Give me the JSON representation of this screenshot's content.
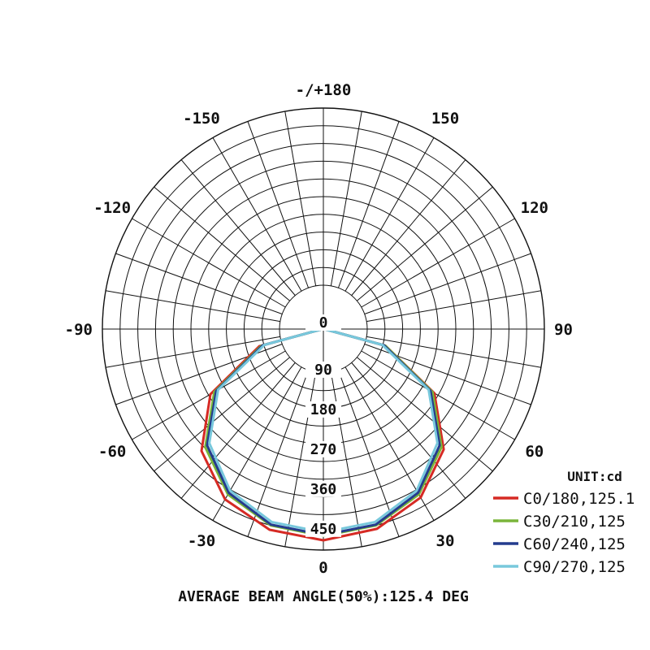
{
  "chart_data": {
    "type": "polar-line",
    "unit_label": "UNIT:cd",
    "footer": "AVERAGE BEAM ANGLE(50%):125.4 DEG",
    "angle_labels": [
      {
        "angle": 180,
        "text": "-/+180"
      },
      {
        "angle": 150,
        "text": "150"
      },
      {
        "angle": -150,
        "text": "-150"
      },
      {
        "angle": 120,
        "text": "120"
      },
      {
        "angle": -120,
        "text": "-120"
      },
      {
        "angle": 90,
        "text": "90"
      },
      {
        "angle": -90,
        "text": "-90"
      },
      {
        "angle": 60,
        "text": "60"
      },
      {
        "angle": -60,
        "text": "-60"
      },
      {
        "angle": 30,
        "text": "30"
      },
      {
        "angle": -30,
        "text": "-30"
      },
      {
        "angle": 0,
        "text": "0"
      }
    ],
    "radial_ticks": [
      "0",
      "90",
      "180",
      "270",
      "360",
      "450"
    ],
    "r_max": 500,
    "series": [
      {
        "name": "C0/180,125.1",
        "color": "#d62a24",
        "angles": [
          -180,
          -165,
          -150,
          -135,
          -120,
          -105,
          -90,
          -75,
          -60,
          -45,
          -30,
          -15,
          0,
          15,
          30,
          45,
          60,
          75,
          90,
          105,
          120,
          135,
          150,
          165,
          180
        ],
        "values": [
          0,
          18,
          22,
          15,
          8,
          4,
          2,
          150,
          295,
          390,
          445,
          470,
          478,
          468,
          440,
          385,
          290,
          145,
          2,
          4,
          8,
          15,
          22,
          18,
          0
        ]
      },
      {
        "name": "C30/210,125",
        "color": "#7ab53a",
        "angles": [
          -180,
          -165,
          -150,
          -135,
          -120,
          -105,
          -90,
          -75,
          -60,
          -45,
          -30,
          -15,
          0,
          15,
          30,
          45,
          60,
          75,
          90,
          105,
          120,
          135,
          150,
          165,
          180
        ],
        "values": [
          0,
          17,
          21,
          14,
          7,
          3,
          2,
          145,
          285,
          378,
          432,
          460,
          468,
          460,
          432,
          378,
          285,
          145,
          2,
          3,
          7,
          14,
          21,
          17,
          0
        ]
      },
      {
        "name": "C60/240,125",
        "color": "#243c8e",
        "angles": [
          -180,
          -165,
          -150,
          -135,
          -120,
          -105,
          -90,
          -75,
          -60,
          -45,
          -30,
          -15,
          0,
          15,
          30,
          45,
          60,
          75,
          90,
          105,
          120,
          135,
          150,
          165,
          180
        ],
        "values": [
          0,
          17,
          21,
          14,
          7,
          3,
          2,
          142,
          280,
          372,
          428,
          458,
          466,
          458,
          428,
          372,
          280,
          142,
          2,
          3,
          7,
          14,
          21,
          17,
          0
        ]
      },
      {
        "name": "C90/270,125",
        "color": "#78c8dc",
        "angles": [
          -180,
          -165,
          -150,
          -135,
          -120,
          -105,
          -90,
          -75,
          -60,
          -45,
          -30,
          -15,
          0,
          15,
          30,
          45,
          60,
          75,
          90,
          105,
          120,
          135,
          150,
          165,
          180
        ],
        "values": [
          0,
          16,
          20,
          13,
          7,
          3,
          2,
          138,
          275,
          365,
          422,
          452,
          460,
          452,
          422,
          365,
          275,
          138,
          2,
          3,
          7,
          13,
          20,
          16,
          0
        ]
      }
    ]
  }
}
